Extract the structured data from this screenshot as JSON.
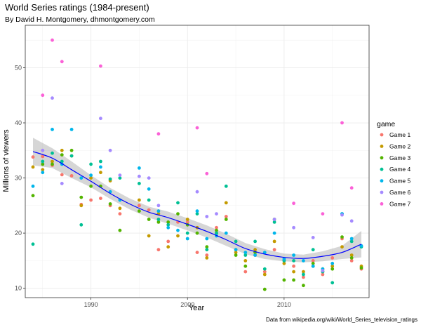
{
  "chart_data": {
    "type": "scatter",
    "title": "World Series ratings (1984-present)",
    "subtitle": "By David H. Montgomery, dhmontgomery.com",
    "xlabel": "Year",
    "ylabel": "Millions of viewers",
    "caption": "Data from wikipedia.org/wiki/World_Series_television_ratings",
    "xlim": [
      1983.2,
      2018.8
    ],
    "ylim": [
      8.3,
      57.7
    ],
    "x_ticks": [
      1990,
      2000,
      2010
    ],
    "y_ticks": [
      10,
      20,
      30,
      40,
      50
    ],
    "grid": true,
    "legend_title": "game",
    "legend_position": "right",
    "series": [
      {
        "name": "Game 1",
        "color": "#F8766D",
        "points": [
          [
            1984,
            33.8
          ],
          [
            1985,
            33.9
          ],
          [
            1986,
            32.3
          ],
          [
            1987,
            30.6
          ],
          [
            1988,
            30.4
          ],
          [
            1989,
            25.2
          ],
          [
            1990,
            26.0
          ],
          [
            1991,
            26.3
          ],
          [
            1992,
            25.0
          ],
          [
            1993,
            23.5
          ],
          [
            1995,
            25.0
          ],
          [
            1996,
            24.2
          ],
          [
            1997,
            17.0
          ],
          [
            1998,
            18.5
          ],
          [
            1999,
            22.0
          ],
          [
            2000,
            22.0
          ],
          [
            2001,
            16.5
          ],
          [
            2002,
            16.0
          ],
          [
            2003,
            21.0
          ],
          [
            2004,
            23.0
          ],
          [
            2005,
            17.0
          ],
          [
            2006,
            13.0
          ],
          [
            2007,
            16.0
          ],
          [
            2008,
            13.0
          ],
          [
            2009,
            17.0
          ],
          [
            2010,
            15.0
          ],
          [
            2011,
            14.0
          ],
          [
            2012,
            12.0
          ],
          [
            2013,
            15.0
          ],
          [
            2014,
            12.5
          ],
          [
            2015,
            15.5
          ],
          [
            2016,
            19.0
          ],
          [
            2017,
            15.0
          ],
          [
            2018,
            13.5
          ]
        ]
      },
      {
        "name": "Game 2",
        "color": "#C49A00",
        "points": [
          [
            1984,
            32.0
          ],
          [
            1985,
            31.5
          ],
          [
            1986,
            33.0
          ],
          [
            1987,
            35.0
          ],
          [
            1988,
            34.0
          ],
          [
            1989,
            25.0
          ],
          [
            1990,
            30.0
          ],
          [
            1991,
            31.0
          ],
          [
            1992,
            29.5
          ],
          [
            1993,
            24.5
          ],
          [
            1995,
            26.0
          ],
          [
            1996,
            19.5
          ],
          [
            1997,
            23.5
          ],
          [
            1998,
            17.5
          ],
          [
            1999,
            19.5
          ],
          [
            2000,
            22.5
          ],
          [
            2001,
            21.0
          ],
          [
            2002,
            15.5
          ],
          [
            2003,
            20.0
          ],
          [
            2004,
            25.5
          ],
          [
            2005,
            16.5
          ],
          [
            2006,
            15.0
          ],
          [
            2007,
            17.0
          ],
          [
            2008,
            12.5
          ],
          [
            2009,
            18.5
          ],
          [
            2010,
            14.5
          ],
          [
            2011,
            13.0
          ],
          [
            2012,
            13.0
          ],
          [
            2013,
            14.0
          ],
          [
            2014,
            13.0
          ],
          [
            2015,
            14.0
          ],
          [
            2016,
            17.5
          ],
          [
            2017,
            16.0
          ],
          [
            2018,
            14.0
          ]
        ]
      },
      {
        "name": "Game 3",
        "color": "#53B400",
        "points": [
          [
            1984,
            26.8
          ],
          [
            1985,
            32.5
          ],
          [
            1986,
            32.5
          ],
          [
            1987,
            34.2
          ],
          [
            1988,
            35.0
          ],
          [
            1989,
            26.5
          ],
          [
            1990,
            28.5
          ],
          [
            1991,
            28.5
          ],
          [
            1992,
            25.3
          ],
          [
            1993,
            20.5
          ],
          [
            1995,
            24.0
          ],
          [
            1996,
            22.5
          ],
          [
            1997,
            22.0
          ],
          [
            1998,
            22.0
          ],
          [
            1999,
            23.5
          ],
          [
            2000,
            21.5
          ],
          [
            2001,
            20.0
          ],
          [
            2002,
            17.5
          ],
          [
            2003,
            20.5
          ],
          [
            2004,
            22.5
          ],
          [
            2005,
            16.0
          ],
          [
            2006,
            14.0
          ],
          [
            2007,
            16.5
          ],
          [
            2008,
            9.8
          ],
          [
            2009,
            22.5
          ],
          [
            2010,
            11.5
          ],
          [
            2011,
            11.5
          ],
          [
            2012,
            10.5
          ],
          [
            2013,
            14.5
          ],
          [
            2014,
            13.5
          ],
          [
            2015,
            13.5
          ],
          [
            2016,
            19.3
          ],
          [
            2017,
            15.5
          ],
          [
            2018,
            13.7
          ]
        ]
      },
      {
        "name": "Game 4",
        "color": "#00C094",
        "points": [
          [
            1984,
            18.0
          ],
          [
            1985,
            33.0
          ],
          [
            1986,
            34.5
          ],
          [
            1987,
            33.0
          ],
          [
            1988,
            34.0
          ],
          [
            1989,
            21.5
          ],
          [
            1990,
            32.5
          ],
          [
            1991,
            33.0
          ],
          [
            1992,
            29.8
          ],
          [
            1993,
            30.0
          ],
          [
            1995,
            29.0
          ],
          [
            1996,
            26.0
          ],
          [
            1997,
            22.5
          ],
          [
            1998,
            21.5
          ],
          [
            1999,
            25.5
          ],
          [
            2000,
            20.0
          ],
          [
            2001,
            23.5
          ],
          [
            2002,
            17.0
          ],
          [
            2003,
            20.0
          ],
          [
            2004,
            28.5
          ],
          [
            2005,
            18.5
          ],
          [
            2006,
            16.0
          ],
          [
            2007,
            18.5
          ],
          [
            2008,
            13.5
          ],
          [
            2009,
            22.0
          ],
          [
            2010,
            15.0
          ],
          [
            2011,
            15.0
          ],
          [
            2012,
            12.5
          ],
          [
            2013,
            17.0
          ],
          [
            2014,
            13.0
          ],
          [
            2015,
            11.0
          ],
          [
            2016,
            23.5
          ],
          [
            2017,
            18.5
          ],
          [
            2018,
            17.5
          ]
        ]
      },
      {
        "name": "Game 5",
        "color": "#00B6EB",
        "points": [
          [
            1984,
            28.5
          ],
          [
            1985,
            31.0
          ],
          [
            1986,
            38.8
          ],
          [
            1987,
            32.5
          ],
          [
            1988,
            38.8
          ],
          [
            1989,
            30.0
          ],
          [
            1990,
            30.5
          ],
          [
            1991,
            32.0
          ],
          [
            1992,
            27.5
          ],
          [
            1993,
            26.0
          ],
          [
            1995,
            31.8
          ],
          [
            1996,
            28.0
          ],
          [
            1997,
            24.0
          ],
          [
            1998,
            21.0
          ],
          [
            1999,
            20.5
          ],
          [
            2000,
            19.0
          ],
          [
            2001,
            24.0
          ],
          [
            2002,
            19.0
          ],
          [
            2003,
            19.5
          ],
          [
            2004,
            20.0
          ],
          [
            2005,
            17.0
          ],
          [
            2006,
            16.5
          ],
          [
            2007,
            16.0
          ],
          [
            2008,
            16.5
          ],
          [
            2009,
            20.0
          ],
          [
            2010,
            15.3
          ],
          [
            2011,
            16.0
          ],
          [
            2012,
            15.0
          ],
          [
            2013,
            14.0
          ],
          [
            2014,
            13.5
          ],
          [
            2015,
            14.5
          ],
          [
            2016,
            23.5
          ],
          [
            2017,
            19.0
          ],
          [
            2018,
            17.7
          ]
        ]
      },
      {
        "name": "Game 6",
        "color": "#A58AFF",
        "points": [
          [
            1985,
            35.0
          ],
          [
            1986,
            44.5
          ],
          [
            1987,
            29.0
          ],
          [
            1991,
            40.8
          ],
          [
            1992,
            35.0
          ],
          [
            1993,
            30.5
          ],
          [
            1995,
            30.3
          ],
          [
            1996,
            30.0
          ],
          [
            1997,
            25.0
          ],
          [
            2001,
            27.5
          ],
          [
            2002,
            23.0
          ],
          [
            2003,
            23.5
          ],
          [
            2009,
            22.5
          ],
          [
            2011,
            21.0
          ],
          [
            2013,
            19.2
          ],
          [
            2014,
            13.2
          ],
          [
            2016,
            23.3
          ],
          [
            2017,
            22.2
          ]
        ]
      },
      {
        "name": "Game 7",
        "color": "#FB61D7",
        "points": [
          [
            1985,
            45.0
          ],
          [
            1986,
            55.0
          ],
          [
            1987,
            51.1
          ],
          [
            1991,
            50.3
          ],
          [
            1997,
            38.0
          ],
          [
            2001,
            39.1
          ],
          [
            2002,
            30.8
          ],
          [
            2011,
            25.4
          ],
          [
            2014,
            23.5
          ],
          [
            2016,
            40.0
          ],
          [
            2017,
            28.2
          ]
        ]
      }
    ],
    "smooth": {
      "name": "loess fit",
      "color": "#0000FF",
      "band_color": "#999999",
      "x": [
        1984,
        1986,
        1988,
        1990,
        1992,
        1994,
        1996,
        1998,
        2000,
        2002,
        2004,
        2006,
        2008,
        2010,
        2012,
        2014,
        2016,
        2018
      ],
      "y": [
        34.8,
        33.6,
        31.5,
        29.4,
        27.2,
        25.3,
        23.8,
        22.8,
        21.6,
        20.3,
        18.8,
        17.2,
        16.2,
        15.6,
        15.4,
        15.8,
        16.5,
        18.0
      ],
      "lower": [
        32.3,
        31.8,
        30.0,
        28.3,
        26.2,
        24.3,
        22.8,
        21.7,
        20.5,
        19.2,
        17.7,
        16.2,
        15.3,
        14.9,
        14.7,
        14.9,
        15.3,
        15.6
      ],
      "upper": [
        37.3,
        35.4,
        33.0,
        30.5,
        28.2,
        26.3,
        24.8,
        23.9,
        22.7,
        21.4,
        19.9,
        18.2,
        17.1,
        16.3,
        16.1,
        16.7,
        17.7,
        20.4
      ]
    }
  }
}
